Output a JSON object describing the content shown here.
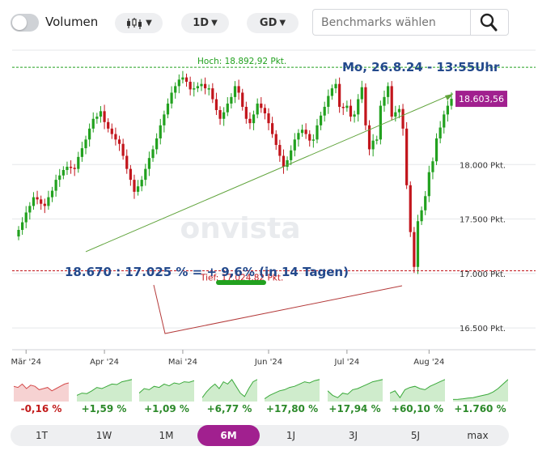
{
  "toolbar": {
    "volume_label": "Volumen",
    "interval_label": "1D",
    "type_label": "GD",
    "benchmark_placeholder": "Benchmarks wählen"
  },
  "chart_data": {
    "type": "candlestick",
    "y_unit": "Pkt.",
    "ylim": [
      16300,
      19050
    ],
    "y_ticks": [
      16500,
      17000,
      17500,
      18000
    ],
    "y_tick_labels": [
      "16.500 Pkt.",
      "17.000 Pkt.",
      "17.500 Pkt.",
      "18.000 Pkt."
    ],
    "x_tick_labels": [
      "Mär '24",
      "Apr '24",
      "Mai '24",
      "Jun '24",
      "Jul '24",
      "Aug '24"
    ],
    "x_tick_index": [
      2,
      23,
      44,
      67,
      88,
      110
    ],
    "high_label": "Hoch: 18.892,92 Pkt.",
    "high_value": 18892.92,
    "low_label": "Tief: 17.024,82 Pkt.",
    "low_value": 17024.82,
    "last_value_label": "18.603,56",
    "last_value": 18603.56,
    "date_label": "Mo, 26.8.24 - 13:55Uhr",
    "annotation": "18.670 : 17.025 % = + 9,6% (in 14 Tagen)",
    "watermark": "onvista",
    "grid": true,
    "closes": [
      17400,
      17470,
      17560,
      17620,
      17700,
      17680,
      17640,
      17620,
      17700,
      17760,
      17860,
      17900,
      17950,
      17980,
      17970,
      17960,
      18070,
      18150,
      18230,
      18330,
      18420,
      18440,
      18490,
      18390,
      18330,
      18280,
      18230,
      18190,
      18080,
      17960,
      17860,
      17750,
      17800,
      17860,
      17960,
      18060,
      18140,
      18240,
      18360,
      18460,
      18560,
      18660,
      18720,
      18780,
      18800,
      18760,
      18690,
      18700,
      18720,
      18740,
      18700,
      18700,
      18600,
      18500,
      18420,
      18480,
      18560,
      18620,
      18720,
      18660,
      18530,
      18420,
      18380,
      18460,
      18560,
      18520,
      18470,
      18380,
      18280,
      18180,
      18080,
      17980,
      18040,
      18130,
      18230,
      18290,
      18320,
      18280,
      18220,
      18230,
      18360,
      18450,
      18530,
      18630,
      18700,
      18740,
      18530,
      18520,
      18540,
      18440,
      18460,
      18600,
      18710,
      18360,
      18140,
      18220,
      18230,
      18540,
      18620,
      18720,
      18440,
      18480,
      18510,
      18330,
      17810,
      17380,
      17060,
      17480,
      17580,
      17710,
      17930,
      18030,
      18240,
      18340,
      18460,
      18540,
      18603.56
    ]
  },
  "periods": [
    {
      "label": "1T",
      "change": "-0,16 %",
      "positive": false,
      "spark": [
        0.6,
        0.55,
        0.7,
        0.5,
        0.65,
        0.6,
        0.45,
        0.5,
        0.55,
        0.4,
        0.5,
        0.6,
        0.7,
        0.75
      ]
    },
    {
      "label": "1W",
      "change": "+1,59 %",
      "positive": true,
      "spark": [
        0.2,
        0.3,
        0.28,
        0.4,
        0.55,
        0.5,
        0.6,
        0.7,
        0.68,
        0.8,
        0.85,
        0.9
      ]
    },
    {
      "label": "1M",
      "change": "+1,09 %",
      "positive": true,
      "spark": [
        0.3,
        0.5,
        0.45,
        0.6,
        0.55,
        0.7,
        0.62,
        0.75,
        0.7,
        0.8,
        0.78,
        0.85
      ]
    },
    {
      "label": "6M",
      "change": "+6,77 %",
      "positive": true,
      "spark": [
        0.1,
        0.35,
        0.55,
        0.7,
        0.5,
        0.8,
        0.7,
        0.9,
        0.6,
        0.3,
        0.15,
        0.5,
        0.8,
        0.9
      ]
    },
    {
      "label": "1J",
      "change": "+17,80 %",
      "positive": true,
      "spark": [
        0.05,
        0.2,
        0.3,
        0.4,
        0.45,
        0.55,
        0.6,
        0.7,
        0.8,
        0.75,
        0.85,
        0.9
      ]
    },
    {
      "label": "3J",
      "change": "+17,94 %",
      "positive": true,
      "spark": [
        0.4,
        0.2,
        0.1,
        0.3,
        0.25,
        0.45,
        0.5,
        0.6,
        0.7,
        0.8,
        0.85,
        0.9
      ]
    },
    {
      "label": "5J",
      "change": "+60,10 %",
      "positive": true,
      "spark": [
        0.3,
        0.4,
        0.1,
        0.45,
        0.55,
        0.6,
        0.5,
        0.45,
        0.6,
        0.7,
        0.8,
        0.9
      ]
    },
    {
      "label": "max",
      "change": "+1.760 %",
      "positive": true,
      "spark": [
        0.02,
        0.03,
        0.05,
        0.08,
        0.1,
        0.15,
        0.2,
        0.25,
        0.35,
        0.5,
        0.7,
        0.9
      ]
    }
  ],
  "active_period": "6M",
  "colors": {
    "up": "#22a11f",
    "down": "#c2151c",
    "accent": "#a1208f",
    "label_blue": "#23498c",
    "trend_green": "#5fa33a",
    "trend_red": "#b43a3a",
    "perf_positive": "#2d8a2b",
    "perf_negative": "#c21a1a"
  },
  "icons": {
    "chart_type": "candlestick-icon",
    "search": "search-icon"
  }
}
